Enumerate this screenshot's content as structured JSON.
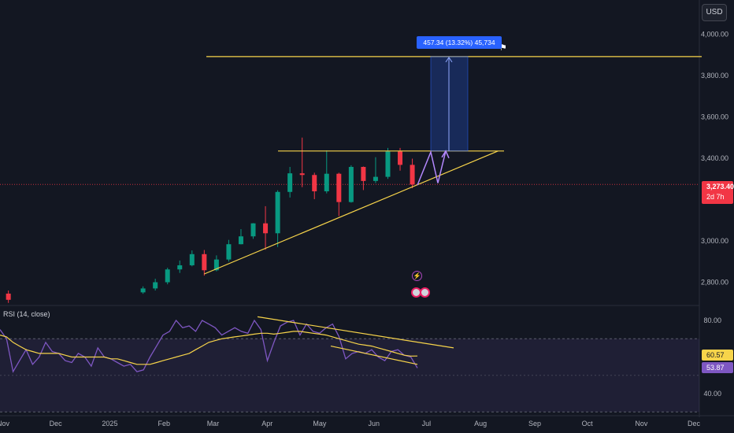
{
  "currency": "USD",
  "price_tag": {
    "price": "3,273.40",
    "countdown": "2d 7h"
  },
  "measure_label": "457.34 (13.32%) 45,734",
  "rsi_title": "RSI (14, close)",
  "rsi_badges": {
    "ma": "60.57",
    "rsi": "53.87"
  },
  "price_axis_ticks": [
    "4,000.00",
    "3,800.00",
    "3,600.00",
    "3,400.00",
    "3,000.00",
    "2,800.00"
  ],
  "rsi_axis_ticks": [
    "80.00",
    "40.00"
  ],
  "time_axis_ticks": [
    "Nov",
    "Dec",
    "2025",
    "Feb",
    "Mar",
    "Apr",
    "May",
    "Jun",
    "Jul",
    "Aug",
    "Sep",
    "Oct",
    "Nov",
    "Dec"
  ],
  "colors": {
    "background": "#131722",
    "up": "#089981",
    "down": "#f23645",
    "trendline": "#f7d44a",
    "measure": "#2962ff",
    "projection": "#b388ff",
    "rsi": "#7e57c2"
  },
  "chart_data": [
    {
      "type": "candlestick",
      "x_unit": "week",
      "ylim": [
        2730,
        4090
      ],
      "grid": false,
      "candles": [
        {
          "x": "2024-10-28",
          "open": 2740,
          "high": 2790,
          "low": 2710,
          "close": 2750
        },
        {
          "x": "2024-11-04",
          "open": 2745,
          "high": 2760,
          "low": 2700,
          "close": 2715
        },
        {
          "x": "2025-01-20",
          "open": 2751,
          "high": 2780,
          "low": 2744,
          "close": 2770
        },
        {
          "x": "2025-01-27",
          "open": 2770,
          "high": 2817,
          "low": 2760,
          "close": 2800
        },
        {
          "x": "2025-02-03",
          "open": 2800,
          "high": 2870,
          "low": 2790,
          "close": 2862
        },
        {
          "x": "2025-02-10",
          "open": 2862,
          "high": 2905,
          "low": 2845,
          "close": 2882
        },
        {
          "x": "2025-02-17",
          "open": 2882,
          "high": 2954,
          "low": 2877,
          "close": 2936
        },
        {
          "x": "2025-02-24",
          "open": 2936,
          "high": 2956,
          "low": 2832,
          "close": 2858
        },
        {
          "x": "2025-03-03",
          "open": 2858,
          "high": 2930,
          "low": 2853,
          "close": 2910
        },
        {
          "x": "2025-03-10",
          "open": 2910,
          "high": 3005,
          "low": 2900,
          "close": 2984
        },
        {
          "x": "2025-03-17",
          "open": 2984,
          "high": 3057,
          "low": 2983,
          "close": 3022
        },
        {
          "x": "2025-03-24",
          "open": 3022,
          "high": 3086,
          "low": 3010,
          "close": 3085
        },
        {
          "x": "2025-03-31",
          "open": 3085,
          "high": 3168,
          "low": 2957,
          "close": 3037
        },
        {
          "x": "2025-04-07",
          "open": 3037,
          "high": 3245,
          "low": 2970,
          "close": 3237
        },
        {
          "x": "2025-04-14",
          "open": 3237,
          "high": 3358,
          "low": 3210,
          "close": 3327
        },
        {
          "x": "2025-04-21",
          "open": 3327,
          "high": 3500,
          "low": 3260,
          "close": 3319
        },
        {
          "x": "2025-04-28",
          "open": 3319,
          "high": 3330,
          "low": 3202,
          "close": 3240
        },
        {
          "x": "2025-05-05",
          "open": 3240,
          "high": 3438,
          "low": 3230,
          "close": 3325
        },
        {
          "x": "2025-05-12",
          "open": 3325,
          "high": 3330,
          "low": 3120,
          "close": 3188
        },
        {
          "x": "2025-05-19",
          "open": 3188,
          "high": 3366,
          "low": 3185,
          "close": 3358
        },
        {
          "x": "2025-05-26",
          "open": 3358,
          "high": 3360,
          "low": 3246,
          "close": 3290
        },
        {
          "x": "2025-06-02",
          "open": 3290,
          "high": 3405,
          "low": 3280,
          "close": 3310
        },
        {
          "x": "2025-06-09",
          "open": 3310,
          "high": 3450,
          "low": 3300,
          "close": 3433
        },
        {
          "x": "2025-06-16",
          "open": 3433,
          "high": 3450,
          "low": 3340,
          "close": 3368
        },
        {
          "x": "2025-06-23",
          "open": 3368,
          "high": 3398,
          "low": 3255,
          "close": 3273
        }
      ],
      "annotations": {
        "resistance_level": 3435,
        "target_level": 3892,
        "ascending_support": [
          {
            "x": "2025-02-24",
            "y": 2840
          },
          {
            "x": "2025-08-11",
            "y": 3435
          }
        ],
        "projection_path": [
          3270,
          3430,
          3280,
          3435
        ],
        "measure_change": "457.34 (13.32%)",
        "current_price": 3273.4
      }
    },
    {
      "type": "line",
      "title": "RSI (14, close)",
      "ylim": [
        30,
        88
      ],
      "bands": [
        30,
        70
      ],
      "series": [
        {
          "values": [
            75,
            70,
            52,
            58,
            64,
            56,
            60,
            68,
            63,
            62,
            58,
            57,
            62,
            60,
            55,
            65,
            60,
            59,
            57,
            55,
            56,
            52,
            53,
            60,
            66,
            72,
            74,
            80,
            76,
            77,
            74,
            80,
            78,
            76,
            72,
            74,
            76,
            74,
            73,
            80,
            75,
            58,
            68,
            77,
            79,
            80,
            72,
            78,
            74,
            73,
            76,
            78,
            71,
            59,
            62,
            63,
            62,
            64,
            60,
            58,
            63,
            64,
            61,
            60,
            54
          ]
        },
        {
          "values": [
            72,
            71,
            68,
            66,
            64,
            63,
            62,
            62,
            62,
            62,
            61,
            60,
            60,
            60,
            60,
            60,
            60,
            59,
            59,
            58,
            57,
            56,
            56,
            56,
            57,
            58,
            59,
            60,
            61,
            62,
            64,
            66,
            68,
            69,
            70,
            70.5,
            71,
            71.5,
            72,
            72.5,
            73,
            73,
            72.5,
            73,
            73.5,
            74,
            74,
            73.5,
            73,
            72.5,
            72,
            71,
            70,
            69,
            68,
            67,
            66.5,
            66,
            65,
            64,
            63,
            62,
            61,
            60.5,
            60.57
          ]
        }
      ],
      "trendlines": [
        {
          "from": 82,
          "to": 65
        },
        {
          "from": 66,
          "to": 56
        }
      ]
    }
  ]
}
